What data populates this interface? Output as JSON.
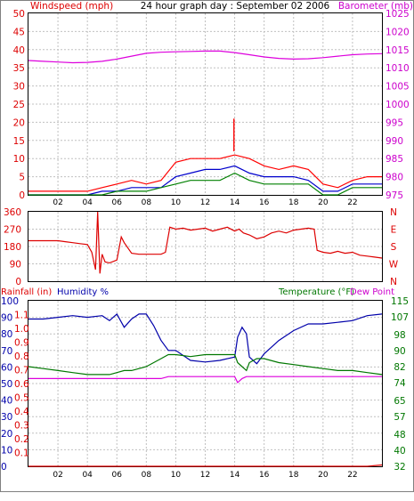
{
  "title": "24 hour graph day : September 02 2006",
  "colors": {
    "wind_gust": "#ff0000",
    "wind_avg": "#0000cc",
    "wind_speed": "#008000",
    "barometer": "#dd00dd",
    "direction": "#dd0000",
    "humidity": "#0000aa",
    "temperature": "#007700",
    "dewpoint": "#dd00dd",
    "rainfall": "#dd0000",
    "grid": "#c0c0c0",
    "text_red": "#dd0000",
    "text_magenta": "#cc00cc"
  },
  "hour_labels": [
    "02",
    "04",
    "06",
    "08",
    "10",
    "12",
    "14",
    "16",
    "18",
    "20",
    "22"
  ],
  "chart_data": [
    {
      "type": "line",
      "name": "wind-barometer",
      "left_axis_label": "Windspeed (mph)",
      "right_axis_label": "Barometer (mb)",
      "left_ticks": [
        "0",
        "5",
        "10",
        "15",
        "20",
        "25",
        "30",
        "35",
        "40",
        "45",
        "50"
      ],
      "right_ticks": [
        "975",
        "980",
        "985",
        "990",
        "995",
        "1000",
        "1005",
        "1010",
        "1015",
        "1020",
        "1025"
      ],
      "ylim_left": [
        0,
        50
      ],
      "ylim_right": [
        975,
        1025
      ],
      "x": [
        0,
        1,
        2,
        3,
        4,
        5,
        6,
        7,
        8,
        9,
        10,
        11,
        12,
        13,
        14,
        15,
        16,
        17,
        18,
        19,
        20,
        21,
        22,
        23,
        24
      ],
      "series": [
        {
          "key": "barometer",
          "axis": "right",
          "values": [
            1012.0,
            1011.8,
            1011.6,
            1011.4,
            1011.5,
            1011.8,
            1012.4,
            1013.2,
            1014.0,
            1014.3,
            1014.4,
            1014.5,
            1014.6,
            1014.6,
            1014.2,
            1013.6,
            1013.0,
            1012.6,
            1012.4,
            1012.5,
            1012.8,
            1013.2,
            1013.6,
            1013.8,
            1013.9
          ]
        },
        {
          "key": "wind_gust",
          "axis": "left",
          "values": [
            1,
            1,
            1,
            1,
            1,
            2,
            3,
            4,
            3,
            4,
            9,
            10,
            10,
            10,
            11,
            10,
            8,
            7,
            8,
            7,
            3,
            2,
            4,
            5,
            5
          ]
        },
        {
          "key": "wind_avg",
          "axis": "left",
          "values": [
            0,
            0,
            0,
            0,
            0,
            1,
            1,
            2,
            2,
            2,
            5,
            6,
            7,
            7,
            8,
            6,
            5,
            5,
            5,
            4,
            1,
            1,
            3,
            3,
            3
          ]
        },
        {
          "key": "wind_speed",
          "axis": "left",
          "values": [
            0,
            0,
            0,
            0,
            0,
            0,
            1,
            1,
            1,
            2,
            3,
            4,
            4,
            4,
            6,
            4,
            3,
            3,
            3,
            3,
            0,
            0,
            2,
            2,
            2
          ]
        }
      ],
      "peak_gust": {
        "x": 13.95,
        "y": 21
      }
    },
    {
      "type": "line",
      "name": "wind-direction",
      "left_ticks": [
        "0",
        "90",
        "180",
        "270",
        "360"
      ],
      "right_ticks": [
        "N",
        "E",
        "S",
        "W",
        "N"
      ],
      "ylim_left": [
        0,
        360
      ],
      "x": [
        0,
        0.5,
        1,
        1.5,
        2,
        2.5,
        3,
        3.5,
        4,
        4.3,
        4.55,
        4.7,
        4.85,
        5.0,
        5.2,
        5.5,
        6.0,
        6.3,
        6.5,
        7.0,
        7.5,
        8.0,
        8.5,
        9.0,
        9.3,
        9.6,
        10.0,
        10.5,
        11.0,
        11.5,
        12.0,
        12.5,
        13.0,
        13.5,
        14.0,
        14.3,
        14.6,
        15.0,
        15.5,
        16.0,
        16.5,
        17.0,
        17.5,
        18.0,
        18.5,
        19.0,
        19.4,
        19.6,
        20.0,
        20.5,
        21.0,
        21.5,
        22.0,
        22.5,
        23.0,
        23.5,
        24.0
      ],
      "series": [
        {
          "key": "direction",
          "axis": "left",
          "values": [
            210,
            210,
            210,
            210,
            210,
            205,
            200,
            195,
            190,
            150,
            60,
            360,
            40,
            140,
            100,
            95,
            110,
            230,
            200,
            145,
            140,
            140,
            140,
            140,
            150,
            280,
            270,
            275,
            265,
            270,
            275,
            260,
            270,
            280,
            260,
            270,
            250,
            240,
            220,
            230,
            250,
            260,
            250,
            265,
            270,
            275,
            270,
            160,
            150,
            145,
            155,
            145,
            150,
            135,
            130,
            125,
            120
          ]
        }
      ]
    },
    {
      "type": "line",
      "name": "humidity-temperature",
      "labels": {
        "rainfall": "Rainfall (in)",
        "humidity": "Humidity %",
        "temperature": "Temperature (°F)",
        "dewpoint": "Dew Point"
      },
      "humidity_ticks": [
        "0",
        "10",
        "20",
        "30",
        "40",
        "50",
        "60",
        "70",
        "80",
        "90",
        "100"
      ],
      "rain_ticks": [
        "0.0",
        "0.1",
        "0.2",
        "0.3",
        "0.4",
        "0.5",
        "0.6",
        "0.7",
        "0.8",
        "0.9",
        "1.0",
        "1.1",
        "1.2"
      ],
      "temp_ticks": [
        "32",
        "40",
        "48",
        "57",
        "65",
        "74",
        "82",
        "90",
        "98",
        "107",
        "115"
      ],
      "ylim_left": [
        0,
        100
      ],
      "ylim_right": [
        32,
        115
      ],
      "x": [
        0,
        1,
        2,
        3,
        4,
        5,
        5.5,
        6,
        6.5,
        7,
        7.5,
        8,
        8.5,
        9,
        9.5,
        10,
        11,
        12,
        13,
        13.5,
        14,
        14.2,
        14.5,
        14.8,
        15,
        15.5,
        16,
        17,
        18,
        19,
        20,
        21,
        22,
        23,
        24
      ],
      "series": [
        {
          "key": "humidity",
          "axis": "left",
          "values": [
            89,
            89,
            90,
            91,
            90,
            91,
            88,
            92,
            84,
            89,
            92,
            92,
            85,
            76,
            70,
            70,
            64,
            63,
            64,
            65,
            66,
            78,
            84,
            80,
            66,
            62,
            68,
            76,
            82,
            86,
            86,
            87,
            88,
            91,
            92
          ]
        },
        {
          "key": "temperature",
          "axis": "right",
          "values": [
            82,
            81,
            80,
            79,
            78,
            78,
            78,
            79,
            80,
            80,
            81,
            82,
            84,
            86,
            88,
            88,
            87,
            88,
            88,
            88,
            88,
            84,
            82,
            80,
            84,
            86,
            86,
            84,
            83,
            82,
            81,
            80,
            80,
            79,
            78
          ]
        },
        {
          "key": "dewpoint",
          "axis": "right",
          "values": [
            76,
            76,
            76,
            76,
            76,
            76,
            76,
            76,
            76,
            76,
            76,
            76,
            76,
            76,
            77,
            77,
            77,
            77,
            77,
            77,
            77,
            74,
            76,
            77,
            77,
            77,
            77,
            77,
            77,
            77,
            77,
            77,
            77,
            77,
            77
          ]
        },
        {
          "key": "rainfall",
          "axis": "rain",
          "values": [
            0,
            0,
            0,
            0,
            0,
            0,
            0,
            0,
            0,
            0,
            0,
            0,
            0,
            0,
            0,
            0,
            0,
            0,
            0,
            0,
            0,
            0,
            0,
            0,
            0,
            0,
            0,
            0,
            0,
            0,
            0,
            0,
            0,
            0,
            0.01
          ]
        }
      ]
    }
  ]
}
